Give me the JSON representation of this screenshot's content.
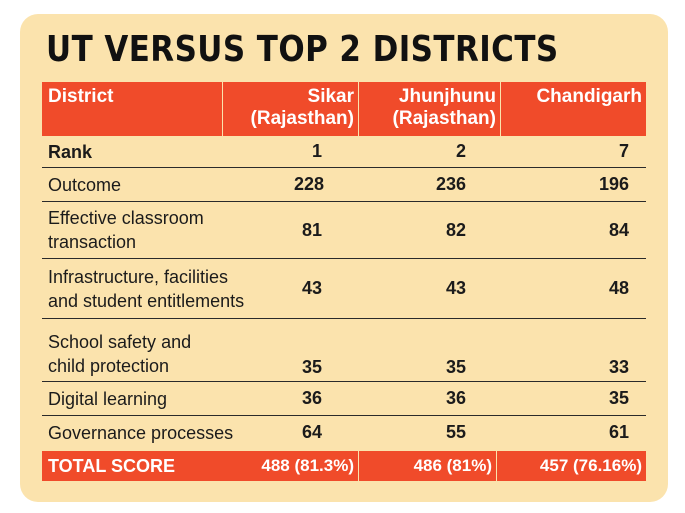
{
  "title": "UT VERSUS TOP 2 DISTRICTS",
  "headers": {
    "district": "District",
    "col1_line1": "Sikar",
    "col1_line2": "(Rajasthan)",
    "col2_line1": "Jhunjhunu",
    "col2_line2": "(Rajasthan)",
    "col3_line1": "Chandigarh"
  },
  "rows": [
    {
      "label_line1": "Rank",
      "label_line2": "",
      "sikar": "1",
      "jhunjhunu": "2",
      "chandigarh": "7"
    },
    {
      "label_line1": "Outcome",
      "label_line2": "",
      "sikar": "228",
      "jhunjhunu": "236",
      "chandigarh": "196"
    },
    {
      "label_line1": "Effective classroom",
      "label_line2": "transaction",
      "sikar": "81",
      "jhunjhunu": "82",
      "chandigarh": "84"
    },
    {
      "label_line1": "Infrastructure, facilities",
      "label_line2": "and student entitlements",
      "sikar": "43",
      "jhunjhunu": "43",
      "chandigarh": "48"
    },
    {
      "label_line1": "School safety and",
      "label_line2": "child protection",
      "sikar": "35",
      "jhunjhunu": "35",
      "chandigarh": "33"
    },
    {
      "label_line1": "Digital learning",
      "label_line2": "",
      "sikar": "36",
      "jhunjhunu": "36",
      "chandigarh": "35"
    },
    {
      "label_line1": "Governance processes",
      "label_line2": "",
      "sikar": "64",
      "jhunjhunu": "55",
      "chandigarh": "61"
    }
  ],
  "total": {
    "label": "TOTAL SCORE",
    "sikar": "488 (81.3%)",
    "jhunjhunu": "486 (81%)",
    "chandigarh": "457 (76.16%)"
  },
  "colors": {
    "background": "#fbe3ad",
    "header_red": "#f04b2a"
  }
}
